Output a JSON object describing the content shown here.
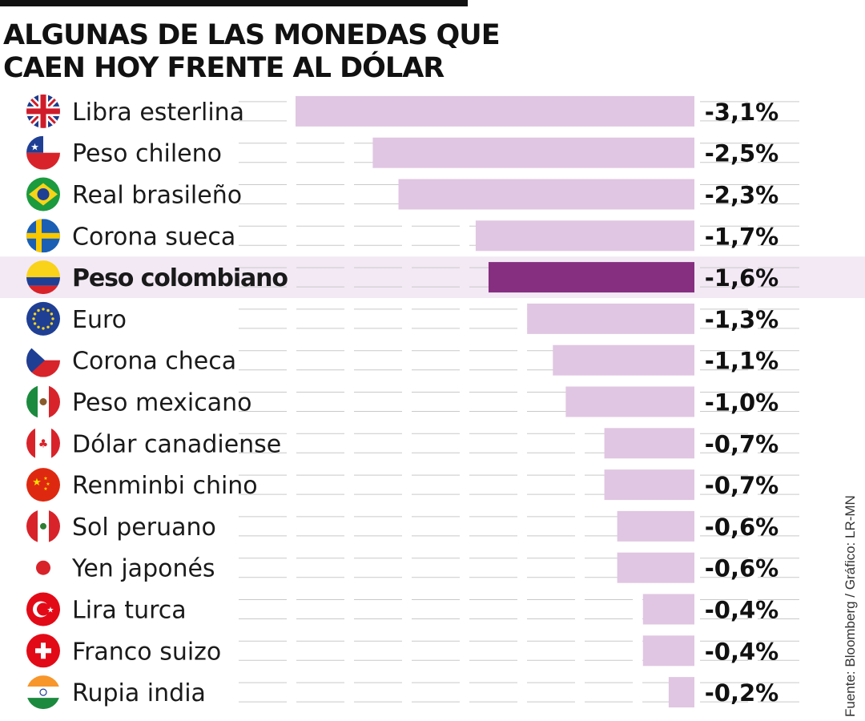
{
  "header": {
    "title_line1": "ALGUNAS DE LAS MONEDAS QUE",
    "title_line2": "CAEN HOY FRENTE AL DÓLAR"
  },
  "source": "Fuente: Bloomberg / Gráfico: LR-MN",
  "colors": {
    "bar": "#e0c6e2",
    "bar_highlight": "#862f80",
    "row_highlight": "#f3e9f5",
    "grid": "#c9c9c9"
  },
  "chart_data": {
    "type": "bar",
    "orientation": "horizontal",
    "title": "ALGUNAS DE LAS MONEDAS QUE CAEN HOY FRENTE AL DÓLAR",
    "categories": [
      "Libra esterlina",
      "Peso chileno",
      "Real brasileño",
      "Corona sueca",
      "Peso colombiano",
      "Euro",
      "Corona checa",
      "Peso mexicano",
      "Dólar canadiense",
      "Renminbi chino",
      "Sol peruano",
      "Yen japonés",
      "Lira turca",
      "Franco suizo",
      "Rupia india"
    ],
    "values": [
      -3.1,
      -2.5,
      -2.3,
      -1.7,
      -1.6,
      -1.3,
      -1.1,
      -1.0,
      -0.7,
      -0.7,
      -0.6,
      -0.6,
      -0.4,
      -0.4,
      -0.2
    ],
    "value_labels": [
      "-3,1%",
      "-2,5%",
      "-2,3%",
      "-1,7%",
      "-1,6%",
      "-1,3%",
      "-1,1%",
      "-1,0%",
      "-0,7%",
      "-0,7%",
      "-0,6%",
      "-0,6%",
      "-0,4%",
      "-0,4%",
      "-0,2%"
    ],
    "flags": [
      "uk-flag-icon",
      "chile-flag-icon",
      "brazil-flag-icon",
      "sweden-flag-icon",
      "colombia-flag-icon",
      "eu-flag-icon",
      "czech-flag-icon",
      "mexico-flag-icon",
      "canada-flag-icon",
      "china-flag-icon",
      "peru-flag-icon",
      "japan-flag-icon",
      "turkey-flag-icon",
      "switzerland-flag-icon",
      "india-flag-icon"
    ],
    "highlight": "Peso colombiano",
    "xlim": [
      -3.1,
      0
    ],
    "grid": true
  }
}
